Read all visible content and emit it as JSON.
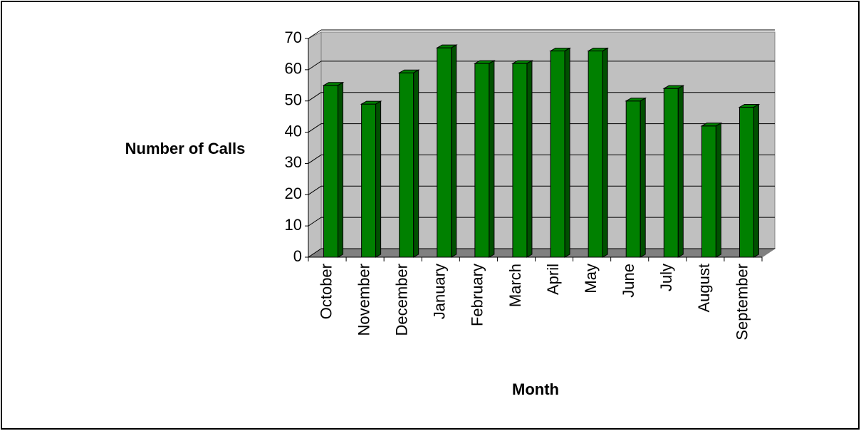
{
  "chart_data": {
    "type": "bar",
    "x_label": "Month",
    "y_label": "Number of Calls",
    "categories": [
      "October",
      "November",
      "December",
      "January",
      "February",
      "March",
      "April",
      "May",
      "June",
      "July",
      "August",
      "September"
    ],
    "values": [
      55,
      49,
      59,
      67,
      62,
      62,
      66,
      66,
      50,
      54,
      42,
      48
    ],
    "color": "#008000",
    "ylim": [
      0,
      70
    ],
    "yticks": [
      0,
      10,
      20,
      30,
      40,
      50,
      60,
      70
    ],
    "grid": true
  }
}
